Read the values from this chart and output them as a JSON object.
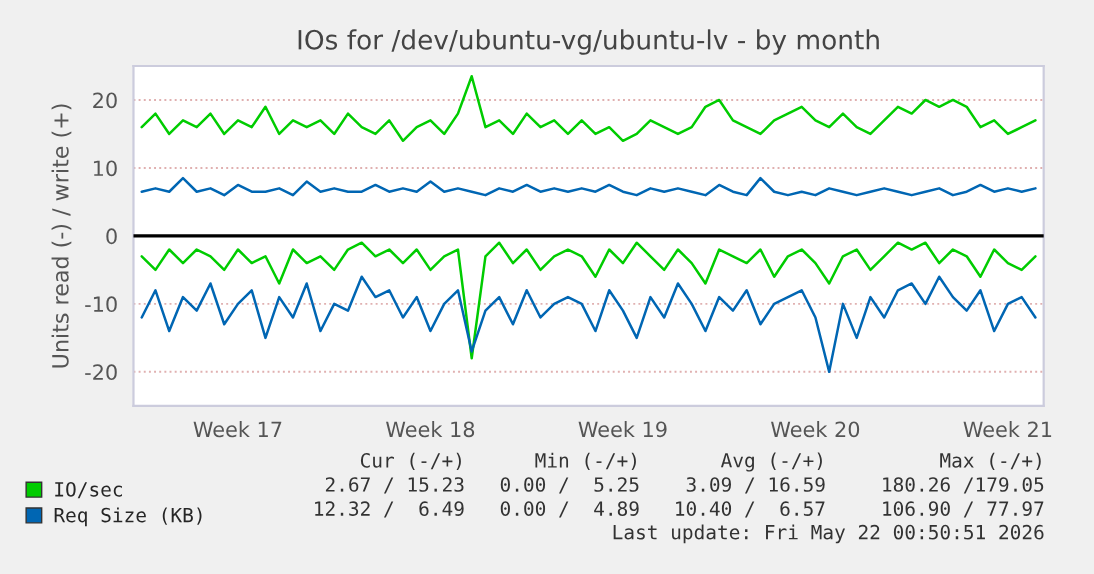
{
  "chart_data": {
    "type": "line",
    "title": "IOs for /dev/ubuntu-vg/ubuntu-lv - by month",
    "ylabel": "Units read (-) / write (+)",
    "categories": [
      null,
      null,
      null,
      null,
      null,
      null,
      null,
      "Week 17",
      null,
      null,
      null,
      null,
      null,
      null,
      null,
      null,
      null,
      null,
      null,
      null,
      null,
      "Week 18",
      null,
      null,
      null,
      null,
      null,
      null,
      null,
      null,
      null,
      null,
      null,
      null,
      null,
      "Week 19",
      null,
      null,
      null,
      null,
      null,
      null,
      null,
      null,
      null,
      null,
      null,
      null,
      null,
      "Week 20",
      null,
      null,
      null,
      null,
      null,
      null,
      null,
      null,
      null,
      null,
      null,
      null,
      null,
      "Week 21",
      null,
      null
    ],
    "series": [
      {
        "name": "IO/sec",
        "color": "#00cc00",
        "values": [
          16,
          18,
          15,
          17,
          16,
          18,
          15,
          17,
          16,
          19,
          15,
          17,
          16,
          17,
          15,
          18,
          16,
          15,
          17,
          14,
          16,
          17,
          15,
          18,
          23.5,
          16,
          17,
          15,
          18,
          16,
          17,
          15,
          17,
          15,
          16,
          14,
          15,
          17,
          16,
          15,
          16,
          19,
          20,
          17,
          16,
          15,
          17,
          18,
          19,
          17,
          16,
          18,
          16,
          15,
          17,
          19,
          18,
          20,
          19,
          20,
          19,
          16,
          17,
          15,
          16,
          17
        ]
      },
      {
        "color": "#00cc00",
        "values": [
          -3,
          -5,
          -2,
          -4,
          -2,
          -3,
          -5,
          -2,
          -4,
          -3,
          -7,
          -2,
          -4,
          -3,
          -5,
          -2,
          -1,
          -3,
          -2,
          -4,
          -2,
          -5,
          -3,
          -2,
          -18,
          -3,
          -1,
          -4,
          -2,
          -5,
          -3,
          -2,
          -3,
          -6,
          -2,
          -4,
          -1,
          -3,
          -5,
          -2,
          -4,
          -7,
          -2,
          -3,
          -4,
          -2,
          -6,
          -3,
          -2,
          -4,
          -7,
          -3,
          -2,
          -5,
          -3,
          -1,
          -2,
          -1,
          -4,
          -2,
          -3,
          -6,
          -2,
          -4,
          -5,
          -3
        ]
      },
      {
        "name": "Req Size (KB)",
        "color": "#0066b3",
        "values": [
          6.5,
          7,
          6.5,
          8.5,
          6.5,
          7,
          6,
          7.5,
          6.5,
          6.5,
          7,
          6,
          8,
          6.5,
          7,
          6.5,
          6.5,
          7.5,
          6.5,
          7,
          6.5,
          8,
          6.5,
          7,
          6.5,
          6,
          7,
          6.5,
          7.5,
          6.5,
          7,
          6.5,
          7,
          6.5,
          7.5,
          6.5,
          6,
          7,
          6.5,
          7,
          6.5,
          6,
          7.5,
          6.5,
          6,
          8.5,
          6.5,
          6,
          6.5,
          6,
          7,
          6.5,
          6,
          6.5,
          7,
          6.5,
          6,
          6.5,
          7,
          6,
          6.5,
          7.5,
          6.5,
          7,
          6.5,
          7
        ]
      },
      {
        "color": "#0066b3",
        "values": [
          -12,
          -8,
          -14,
          -9,
          -11,
          -7,
          -13,
          -10,
          -8,
          -15,
          -9,
          -12,
          -7,
          -14,
          -10,
          -11,
          -6,
          -9,
          -8,
          -12,
          -9,
          -14,
          -10,
          -8,
          -17,
          -11,
          -9,
          -13,
          -8,
          -12,
          -10,
          -9,
          -10,
          -14,
          -8,
          -11,
          -15,
          -9,
          -12,
          -7,
          -10,
          -14,
          -9,
          -11,
          -8,
          -13,
          -10,
          -9,
          -8,
          -12,
          -20,
          -10,
          -15,
          -9,
          -12,
          -8,
          -7,
          -10,
          -6,
          -9,
          -11,
          -8,
          -14,
          -10,
          -9,
          -12
        ]
      }
    ],
    "ylim": [
      -25,
      25
    ],
    "yticks": [
      -20,
      -10,
      0,
      10,
      20
    ],
    "ref_lines": [
      {
        "axis": "y",
        "value": 0,
        "color": "#000000"
      }
    ],
    "grid": "y",
    "legend": "bottom",
    "line_style": "solid",
    "marker": "none",
    "annotations": [
      "Cur (-/+)",
      "Min (-/+)",
      "Avg (-/+)",
      "Max (-/+)",
      "2.67 / 15.23",
      "0.00 /  5.25",
      "3.09 / 16.59",
      "180.26 /179.05",
      "12.32 /  6.49",
      "0.00 /  4.89",
      "10.40 /  6.57",
      "106.90 / 77.97",
      "Last update: Fri May 22 00:50:51 2026"
    ]
  }
}
